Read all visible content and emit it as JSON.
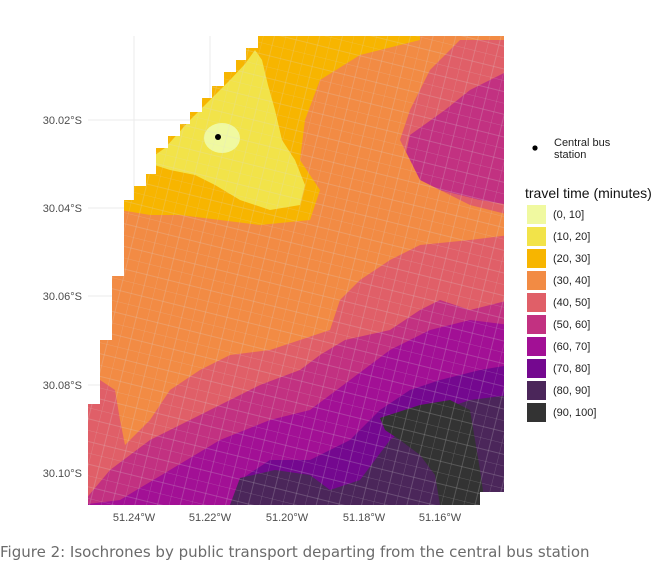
{
  "chart_data": {
    "type": "heatmap",
    "title": "",
    "xlabel": "",
    "ylabel": "",
    "x_ticks": [
      "51.24°W",
      "51.22°W",
      "51.20°W",
      "51.18°W",
      "51.16°W"
    ],
    "y_ticks": [
      "30.02°S",
      "30.04°S",
      "30.06°S",
      "30.08°S",
      "30.10°S"
    ],
    "point_marker": {
      "label": "Central bus station",
      "lines": [
        "Central bus",
        "station"
      ],
      "lon": -51.218,
      "lat": -30.024
    },
    "legend": {
      "title": "travel time (minutes)",
      "bins": [
        {
          "label": "(0, 10]",
          "color": "#f0f9a0"
        },
        {
          "label": "(10, 20]",
          "color": "#f2e349"
        },
        {
          "label": "(20, 30]",
          "color": "#f7b500"
        },
        {
          "label": "(30, 40]",
          "color": "#f28b44"
        },
        {
          "label": "(40, 50]",
          "color": "#e05f68"
        },
        {
          "label": "(50, 60]",
          "color": "#c23181"
        },
        {
          "label": "(60, 70]",
          "color": "#a21095"
        },
        {
          "label": "(70, 80]",
          "color": "#74088f"
        },
        {
          "label": "(80, 90]",
          "color": "#4b265a"
        },
        {
          "label": "(90, 100]",
          "color": "#333333"
        }
      ]
    }
  },
  "caption": "Figure 2: Isochrones by public transport departing from the central bus station"
}
